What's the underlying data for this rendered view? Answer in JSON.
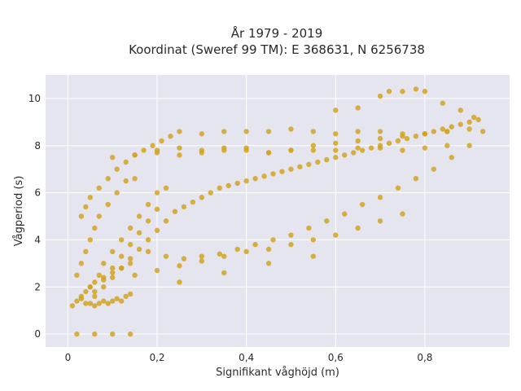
{
  "chart_data": {
    "type": "scatter",
    "title": "År 1979 - 2019",
    "subtitle": "Koordinat (Sweref 99 TM): E 368631, N 6256738",
    "xlabel": "Signifikant våghöjd (m)",
    "ylabel": "Vågperiod (s)",
    "xlim": [
      -0.05,
      0.99
    ],
    "ylim": [
      -0.55,
      11
    ],
    "x_ticks": [
      0,
      0.2,
      0.4,
      0.6,
      0.8
    ],
    "x_tick_labels": [
      "0",
      "0,2",
      "0,4",
      "0,6",
      "0,8"
    ],
    "y_ticks": [
      0,
      2,
      4,
      6,
      8,
      10
    ],
    "y_tick_labels": [
      "0",
      "2",
      "4",
      "6",
      "8",
      "10"
    ],
    "grid": true,
    "point_color": "#D4A321",
    "background_color": "#E5E5EF",
    "series": [
      {
        "x": [
          0.01,
          0.02,
          0.03,
          0.04,
          0.05,
          0.06,
          0.08,
          0.1,
          0.12,
          0.14,
          0.02,
          0.03,
          0.04,
          0.05,
          0.06,
          0.07,
          0.09,
          0.11,
          0.13,
          0.15,
          0.03,
          0.05,
          0.07,
          0.08,
          0.1,
          0.12,
          0.14,
          0.16,
          0.18,
          0.2,
          0.04,
          0.06,
          0.08,
          0.1,
          0.12,
          0.14,
          0.16,
          0.18,
          0.2,
          0.22,
          0.06,
          0.08,
          0.1,
          0.12,
          0.14,
          0.16,
          0.18,
          0.2,
          0.22,
          0.24,
          0.26,
          0.28,
          0.3,
          0.32,
          0.34,
          0.36,
          0.38,
          0.4,
          0.42,
          0.44,
          0.46,
          0.48,
          0.5,
          0.52,
          0.54,
          0.56,
          0.58,
          0.6,
          0.62,
          0.64,
          0.66,
          0.68,
          0.7,
          0.72,
          0.74,
          0.76,
          0.78,
          0.8,
          0.82,
          0.84,
          0.86,
          0.88,
          0.9,
          0.92,
          0.3,
          0.35,
          0.4,
          0.45,
          0.5,
          0.55,
          0.6,
          0.65,
          0.7,
          0.75,
          0.8,
          0.85,
          0.9,
          0.2,
          0.25,
          0.3,
          0.35,
          0.4,
          0.45,
          0.5,
          0.55,
          0.6,
          0.65,
          0.7,
          0.75,
          0.8,
          0.85,
          0.18,
          0.22,
          0.26,
          0.3,
          0.34,
          0.38,
          0.42,
          0.46,
          0.5,
          0.54,
          0.58,
          0.62,
          0.66,
          0.7,
          0.74,
          0.78,
          0.82,
          0.86,
          0.9,
          0.93,
          0.15,
          0.2,
          0.25,
          0.3,
          0.35,
          0.4,
          0.45,
          0.5,
          0.55,
          0.6,
          0.65,
          0.7,
          0.75,
          0.05,
          0.06,
          0.07,
          0.08,
          0.09,
          0.1,
          0.11,
          0.12,
          0.13,
          0.14,
          0.03,
          0.04,
          0.05,
          0.07,
          0.09,
          0.11,
          0.13,
          0.15,
          0.17,
          0.19,
          0.21,
          0.23,
          0.25,
          0.1,
          0.15,
          0.2,
          0.25,
          0.3,
          0.35,
          0.4,
          0.45,
          0.5,
          0.55,
          0.6,
          0.65,
          0.7,
          0.75,
          0.8,
          0.85,
          0.6,
          0.65,
          0.7,
          0.72,
          0.75,
          0.78,
          0.8,
          0.84,
          0.88,
          0.91,
          0.02,
          0.06,
          0.1,
          0.14,
          0.25,
          0.35,
          0.45,
          0.55
        ],
        "y": [
          1.2,
          1.4,
          1.6,
          1.8,
          2.0,
          2.2,
          2.4,
          2.6,
          2.8,
          3.0,
          2.5,
          3.0,
          3.5,
          4.0,
          4.5,
          5.0,
          5.5,
          6.0,
          6.5,
          6.6,
          1.5,
          2.0,
          2.5,
          3.0,
          3.5,
          4.0,
          4.5,
          5.0,
          5.5,
          6.0,
          1.3,
          1.8,
          2.3,
          2.8,
          3.3,
          3.8,
          4.3,
          4.8,
          5.3,
          6.2,
          1.6,
          2.0,
          2.4,
          2.8,
          3.2,
          3.6,
          4.0,
          4.4,
          4.8,
          5.2,
          5.4,
          5.6,
          5.8,
          6.0,
          6.2,
          6.3,
          6.4,
          6.5,
          6.6,
          6.7,
          6.8,
          6.9,
          7.0,
          7.1,
          7.2,
          7.3,
          7.4,
          7.5,
          7.6,
          7.7,
          7.8,
          7.9,
          8.0,
          8.1,
          8.2,
          8.3,
          8.4,
          8.5,
          8.6,
          8.7,
          8.8,
          8.9,
          9.0,
          9.1,
          8.5,
          8.6,
          8.6,
          8.6,
          8.7,
          8.6,
          8.5,
          8.6,
          8.6,
          8.5,
          8.5,
          8.6,
          8.7,
          7.8,
          7.9,
          7.8,
          7.9,
          7.8,
          7.7,
          7.8,
          7.8,
          7.8,
          7.9,
          7.9,
          7.8,
          7.9,
          8.0,
          3.5,
          3.3,
          3.2,
          3.3,
          3.4,
          3.6,
          3.8,
          4.0,
          4.2,
          4.5,
          4.8,
          5.1,
          5.5,
          5.8,
          6.2,
          6.6,
          7.0,
          7.5,
          8.0,
          8.6,
          2.5,
          2.7,
          2.9,
          3.1,
          3.3,
          3.5,
          3.6,
          3.8,
          4.0,
          4.2,
          4.5,
          4.8,
          5.1,
          1.3,
          1.2,
          1.3,
          1.4,
          1.3,
          1.4,
          1.5,
          1.4,
          1.6,
          1.7,
          5.0,
          5.4,
          5.8,
          6.2,
          6.6,
          7.0,
          7.3,
          7.6,
          7.8,
          8.0,
          8.2,
          8.4,
          8.6,
          7.5,
          7.6,
          7.7,
          7.6,
          7.7,
          7.8,
          7.9,
          7.7,
          7.8,
          8.0,
          8.1,
          8.2,
          8.3,
          8.4,
          8.5,
          8.6,
          9.5,
          9.6,
          10.1,
          10.3,
          10.3,
          10.4,
          10.3,
          9.8,
          9.5,
          9.2,
          0.0,
          0.0,
          0.0,
          0.0,
          2.2,
          2.6,
          3.0,
          3.3
        ]
      }
    ]
  }
}
